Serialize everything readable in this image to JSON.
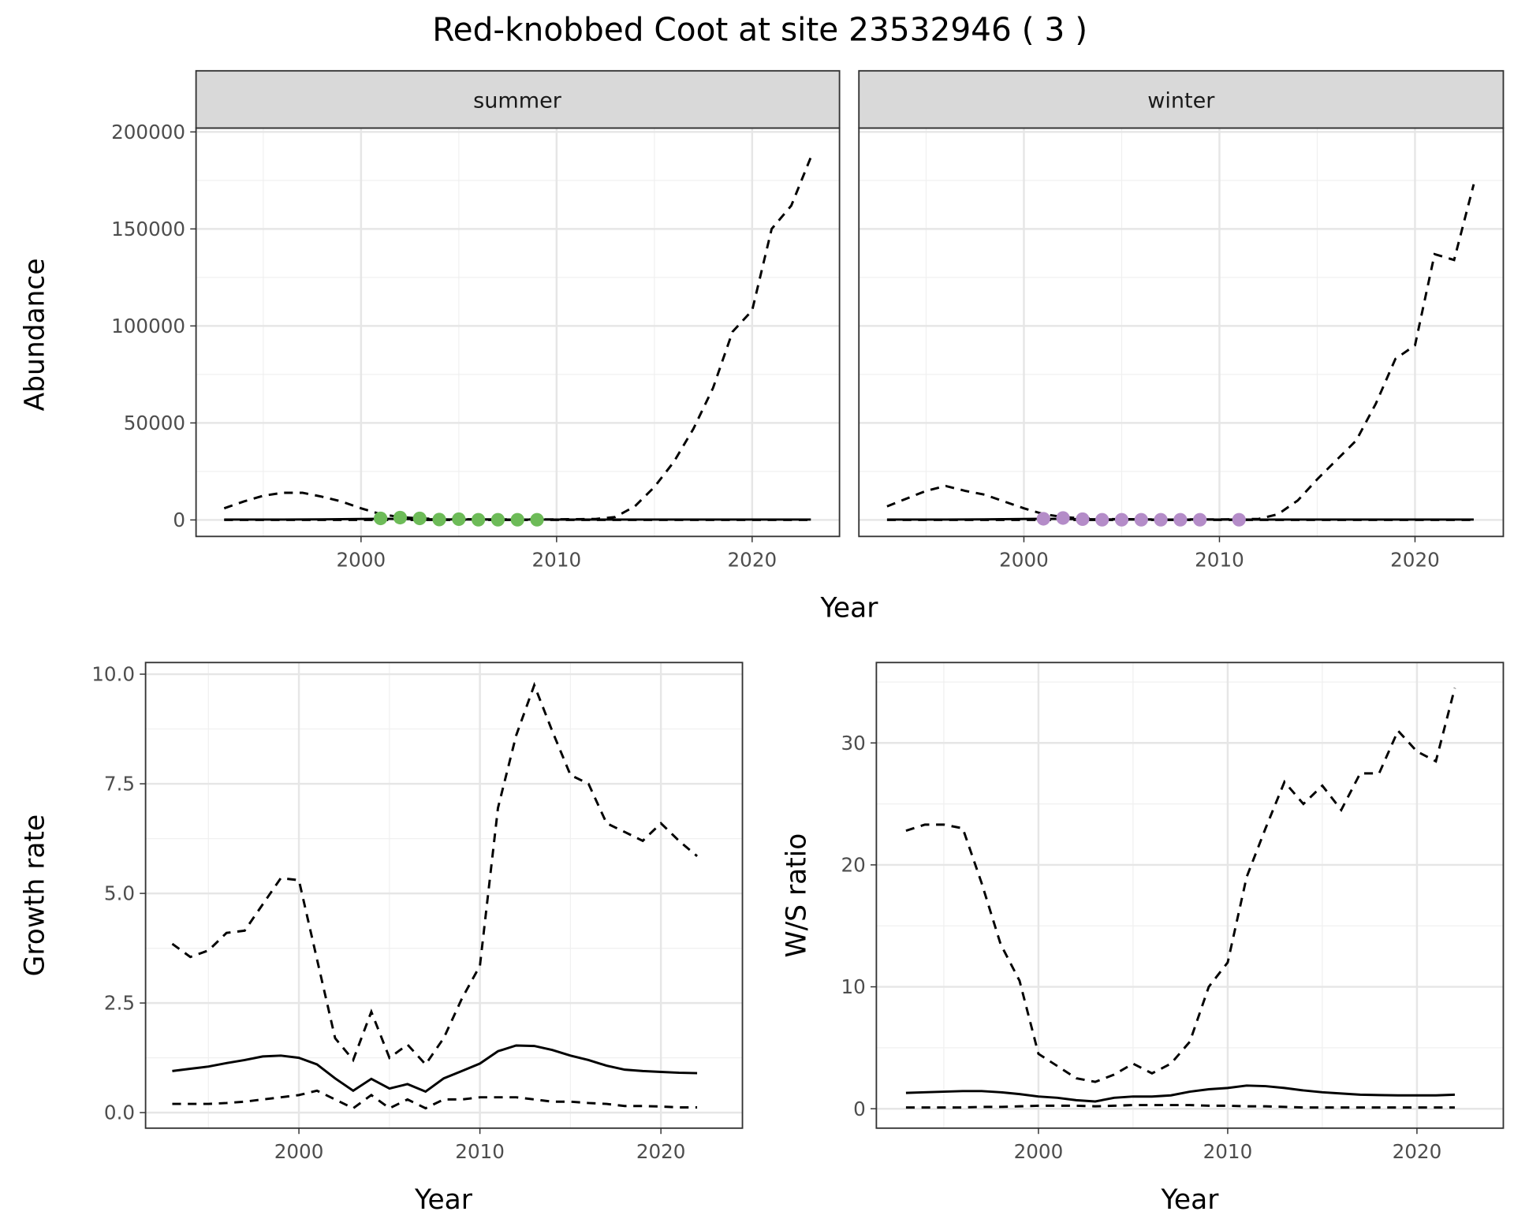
{
  "title": "Red-knobbed Coot at site 23532946 ( 3 )",
  "chart_data": [
    {
      "type": "line",
      "facet": "summer",
      "xlabel": "Year",
      "ylabel": "Abundance",
      "xticks": [
        2000,
        2010,
        2020
      ],
      "yticks": [
        0,
        50000,
        100000,
        150000,
        200000
      ],
      "ylim": [
        0,
        200000
      ],
      "grid": true,
      "x": [
        1993,
        1994,
        1995,
        1996,
        1997,
        1998,
        1999,
        2000,
        2001,
        2002,
        2003,
        2004,
        2005,
        2006,
        2007,
        2008,
        2009,
        2010,
        2011,
        2012,
        2013,
        2014,
        2015,
        2016,
        2017,
        2018,
        2019,
        2020,
        2021,
        2022,
        2023
      ],
      "series": [
        {
          "style": "dashed",
          "values": [
            6000,
            9500,
            12500,
            14000,
            14000,
            12000,
            9500,
            6000,
            3000,
            1500,
            800,
            500,
            400,
            300,
            300,
            300,
            300,
            300,
            400,
            500,
            1500,
            7000,
            17000,
            30000,
            47000,
            68000,
            97000,
            108000,
            150000,
            162000,
            187000
          ]
        },
        {
          "style": "solid",
          "values": [
            200,
            200,
            200,
            200,
            250,
            300,
            400,
            500,
            600,
            500,
            400,
            300,
            250,
            200,
            200,
            200,
            200,
            200,
            200,
            200,
            200,
            200,
            200,
            200,
            200,
            200,
            200,
            200,
            200,
            200,
            200
          ]
        },
        {
          "style": "dashed-lower",
          "values": [
            0,
            0,
            0,
            0,
            0,
            0,
            0,
            0,
            0,
            0,
            0,
            0,
            0,
            0,
            0,
            0,
            0,
            0,
            0,
            0,
            0,
            0,
            0,
            0,
            0,
            0,
            0,
            0,
            0,
            0,
            0
          ]
        }
      ],
      "points": {
        "color": "#6dbb58",
        "x": [
          2001,
          2002,
          2003,
          2004,
          2005,
          2006,
          2007,
          2008,
          2009
        ],
        "y": [
          800,
          1200,
          800,
          200,
          400,
          100,
          100,
          100,
          100
        ]
      }
    },
    {
      "type": "line",
      "facet": "winter",
      "xlabel": "Year",
      "ylabel": "Abundance",
      "xticks": [
        2000,
        2010,
        2020
      ],
      "yticks": [
        0,
        50000,
        100000,
        150000,
        200000
      ],
      "ylim": [
        0,
        200000
      ],
      "grid": true,
      "x": [
        1993,
        1994,
        1995,
        1996,
        1997,
        1998,
        1999,
        2000,
        2001,
        2002,
        2003,
        2004,
        2005,
        2006,
        2007,
        2008,
        2009,
        2010,
        2011,
        2012,
        2013,
        2014,
        2015,
        2016,
        2017,
        2018,
        2019,
        2020,
        2021,
        2022,
        2023
      ],
      "series": [
        {
          "style": "dashed",
          "values": [
            7000,
            11000,
            15000,
            17500,
            15000,
            13000,
            9500,
            6000,
            3000,
            1500,
            800,
            500,
            400,
            300,
            300,
            300,
            300,
            300,
            400,
            500,
            3000,
            10000,
            21000,
            31000,
            41000,
            60000,
            83000,
            90000,
            137000,
            134000,
            173000
          ]
        },
        {
          "style": "solid",
          "values": [
            200,
            200,
            200,
            200,
            250,
            300,
            400,
            500,
            600,
            500,
            400,
            300,
            250,
            200,
            200,
            200,
            200,
            200,
            200,
            200,
            200,
            200,
            200,
            200,
            200,
            200,
            200,
            200,
            200,
            200,
            200
          ]
        },
        {
          "style": "dashed-lower",
          "values": [
            0,
            0,
            0,
            0,
            0,
            0,
            0,
            0,
            0,
            0,
            0,
            0,
            0,
            0,
            0,
            0,
            0,
            0,
            0,
            0,
            0,
            0,
            0,
            0,
            0,
            0,
            0,
            0,
            0,
            0,
            0
          ]
        }
      ],
      "points": {
        "color": "#b48cc8",
        "x": [
          2001,
          2002,
          2003,
          2004,
          2005,
          2006,
          2007,
          2008,
          2009,
          2011
        ],
        "y": [
          600,
          1000,
          400,
          100,
          100,
          100,
          100,
          100,
          100,
          100
        ]
      }
    },
    {
      "type": "line",
      "xlabel": "Year",
      "ylabel": "Growth rate",
      "xticks": [
        2000,
        2010,
        2020
      ],
      "yticks": [
        "0.0",
        "2.5",
        "5.0",
        "7.5",
        "10.0"
      ],
      "ylim": [
        -0.35,
        10.25
      ],
      "grid": true,
      "x": [
        1993,
        1994,
        1995,
        1996,
        1997,
        1998,
        1999,
        2000,
        2001,
        2002,
        2003,
        2004,
        2005,
        2006,
        2007,
        2008,
        2009,
        2010,
        2011,
        2012,
        2013,
        2014,
        2015,
        2016,
        2017,
        2018,
        2019,
        2020,
        2021,
        2022
      ],
      "series": [
        {
          "style": "dashed",
          "values": [
            3.85,
            3.55,
            3.7,
            4.1,
            4.15,
            4.75,
            5.35,
            5.3,
            3.5,
            1.7,
            1.2,
            2.3,
            1.25,
            1.55,
            1.1,
            1.7,
            2.6,
            3.35,
            6.95,
            8.6,
            9.75,
            8.7,
            7.7,
            7.5,
            6.6,
            6.4,
            6.2,
            6.6,
            6.2,
            5.85
          ]
        },
        {
          "style": "solid",
          "values": [
            0.95,
            1.0,
            1.05,
            1.13,
            1.2,
            1.28,
            1.3,
            1.25,
            1.1,
            0.78,
            0.5,
            0.77,
            0.55,
            0.65,
            0.48,
            0.78,
            0.95,
            1.12,
            1.4,
            1.53,
            1.52,
            1.43,
            1.3,
            1.2,
            1.07,
            0.98,
            0.95,
            0.93,
            0.91,
            0.9
          ]
        },
        {
          "style": "dashed-lower",
          "values": [
            0.2,
            0.2,
            0.2,
            0.22,
            0.25,
            0.3,
            0.35,
            0.4,
            0.5,
            0.3,
            0.1,
            0.4,
            0.1,
            0.3,
            0.1,
            0.3,
            0.3,
            0.35,
            0.35,
            0.35,
            0.3,
            0.25,
            0.25,
            0.22,
            0.2,
            0.15,
            0.15,
            0.14,
            0.12,
            0.12
          ]
        }
      ]
    },
    {
      "type": "line",
      "xlabel": "Year",
      "ylabel": "W/S ratio",
      "xticks": [
        2000,
        2010,
        2020
      ],
      "yticks": [
        0,
        10,
        20,
        30
      ],
      "ylim": [
        -1.7,
        36.5
      ],
      "grid": true,
      "x": [
        1993,
        1994,
        1995,
        1996,
        1997,
        1998,
        1999,
        2000,
        2001,
        2002,
        2003,
        2004,
        2005,
        2006,
        2007,
        2008,
        2009,
        2010,
        2011,
        2012,
        2013,
        2014,
        2015,
        2016,
        2017,
        2018,
        2019,
        2020,
        2021,
        2022
      ],
      "series": [
        {
          "style": "dashed",
          "values": [
            22.8,
            23.3,
            23.3,
            23.0,
            18.5,
            13.5,
            10.5,
            4.5,
            3.5,
            2.5,
            2.2,
            2.8,
            3.7,
            2.9,
            3.7,
            5.5,
            10,
            12,
            19,
            23,
            26.8,
            25,
            26.5,
            24.5,
            27.5,
            27.5,
            31,
            29.3,
            28.5,
            34.5
          ]
        },
        {
          "style": "solid",
          "values": [
            1.3,
            1.35,
            1.4,
            1.45,
            1.45,
            1.35,
            1.2,
            1.0,
            0.9,
            0.7,
            0.6,
            0.9,
            1.0,
            1.0,
            1.1,
            1.4,
            1.6,
            1.7,
            1.9,
            1.85,
            1.7,
            1.5,
            1.35,
            1.25,
            1.15,
            1.12,
            1.1,
            1.1,
            1.1,
            1.15
          ]
        },
        {
          "style": "dashed-lower",
          "values": [
            0.1,
            0.1,
            0.1,
            0.1,
            0.15,
            0.15,
            0.2,
            0.25,
            0.25,
            0.25,
            0.2,
            0.25,
            0.3,
            0.3,
            0.3,
            0.3,
            0.25,
            0.25,
            0.2,
            0.2,
            0.15,
            0.1,
            0.1,
            0.1,
            0.1,
            0.1,
            0.1,
            0.1,
            0.1,
            0.1
          ]
        }
      ]
    }
  ],
  "labels": {
    "facet_summer": "summer",
    "facet_winter": "winter",
    "top_xlabel": "Year",
    "top_ylabel": "Abundance",
    "bl_xlabel": "Year",
    "bl_ylabel": "Growth rate",
    "br_xlabel": "Year",
    "br_ylabel": "W/S ratio"
  }
}
